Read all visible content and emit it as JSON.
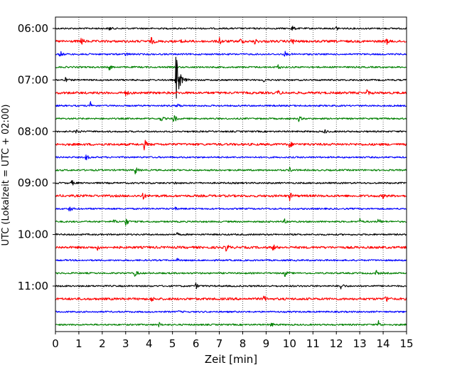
{
  "chart_data": {
    "type": "line",
    "subtype": "helicorder",
    "xlabel": "Zeit  [min]",
    "ylabel": "UTC (Lokalzeit = UTC + 02:00)",
    "xlim": [
      0,
      15
    ],
    "x_ticks": [
      "0",
      "1",
      "2",
      "3",
      "4",
      "5",
      "6",
      "7",
      "8",
      "9",
      "10",
      "11",
      "12",
      "13",
      "14",
      "15"
    ],
    "y_tick_labels": [
      "06:00",
      "07:00",
      "08:00",
      "09:00",
      "10:00",
      "11:00"
    ],
    "rows_per_hour": 4,
    "trace_colors": [
      "#000000",
      "#ff0000",
      "#0000ff",
      "#008000"
    ],
    "grid": "vertical dotted",
    "traces": [
      {
        "start": "06:00",
        "events": [
          [
            10.1,
            5
          ],
          [
            2.3,
            3
          ],
          [
            12.0,
            3
          ]
        ]
      },
      {
        "start": "06:15",
        "events": [
          [
            1.1,
            6
          ],
          [
            4.1,
            5
          ],
          [
            5.4,
            5
          ],
          [
            7.0,
            6
          ],
          [
            7.9,
            5
          ],
          [
            8.5,
            5
          ],
          [
            10.1,
            6
          ],
          [
            14.1,
            7
          ]
        ]
      },
      {
        "start": "06:30",
        "events": [
          [
            0.2,
            5
          ],
          [
            1.1,
            4
          ],
          [
            3.0,
            3
          ],
          [
            9.8,
            4
          ]
        ]
      },
      {
        "start": "06:45",
        "events": [
          [
            2.3,
            5
          ],
          [
            9.5,
            4
          ]
        ]
      },
      {
        "start": "07:00",
        "events": [
          [
            0.4,
            4
          ],
          [
            5.15,
            40
          ],
          [
            8.9,
            3
          ]
        ]
      },
      {
        "start": "07:15",
        "events": [
          [
            3.0,
            4
          ],
          [
            9.5,
            4
          ],
          [
            13.3,
            4
          ]
        ]
      },
      {
        "start": "07:30",
        "events": [
          [
            1.5,
            5
          ],
          [
            5.2,
            4
          ]
        ]
      },
      {
        "start": "07:45",
        "events": [
          [
            4.5,
            5
          ],
          [
            5.05,
            8
          ],
          [
            10.4,
            4
          ]
        ]
      },
      {
        "start": "08:00",
        "events": [
          [
            0.9,
            4
          ],
          [
            11.5,
            3
          ]
        ]
      },
      {
        "start": "08:15",
        "events": [
          [
            3.8,
            8
          ],
          [
            10.0,
            5
          ]
        ]
      },
      {
        "start": "08:30",
        "events": [
          [
            1.3,
            5
          ]
        ]
      },
      {
        "start": "08:45",
        "events": [
          [
            3.4,
            7
          ],
          [
            10.0,
            4
          ]
        ]
      },
      {
        "start": "09:00",
        "events": [
          [
            0.7,
            4
          ],
          [
            5.1,
            2
          ]
        ]
      },
      {
        "start": "09:15",
        "events": [
          [
            3.7,
            8
          ],
          [
            10.0,
            6
          ],
          [
            14.0,
            3
          ]
        ]
      },
      {
        "start": "09:30",
        "events": [
          [
            0.6,
            5
          ],
          [
            5.1,
            2
          ]
        ]
      },
      {
        "start": "09:45",
        "events": [
          [
            2.5,
            3
          ],
          [
            3.0,
            7
          ],
          [
            9.8,
            4
          ],
          [
            13.0,
            4
          ],
          [
            13.8,
            5
          ]
        ]
      },
      {
        "start": "10:00",
        "events": [
          [
            5.2,
            2
          ]
        ]
      },
      {
        "start": "10:15",
        "events": [
          [
            1.8,
            3
          ],
          [
            7.3,
            7
          ],
          [
            9.3,
            5
          ]
        ]
      },
      {
        "start": "10:30",
        "events": [
          [
            5.2,
            2
          ]
        ]
      },
      {
        "start": "10:45",
        "events": [
          [
            3.4,
            6
          ],
          [
            9.8,
            5
          ],
          [
            13.7,
            4
          ]
        ]
      },
      {
        "start": "11:00",
        "events": [
          [
            6.0,
            4
          ],
          [
            12.2,
            6
          ]
        ]
      },
      {
        "start": "11:15",
        "events": [
          [
            4.1,
            4
          ],
          [
            8.9,
            5
          ],
          [
            14.1,
            7
          ]
        ]
      },
      {
        "start": "11:30",
        "events": [
          [
            5.2,
            2
          ]
        ]
      },
      {
        "start": "11:45",
        "events": [
          [
            4.4,
            4
          ],
          [
            9.2,
            4
          ],
          [
            13.8,
            6
          ]
        ]
      }
    ]
  }
}
